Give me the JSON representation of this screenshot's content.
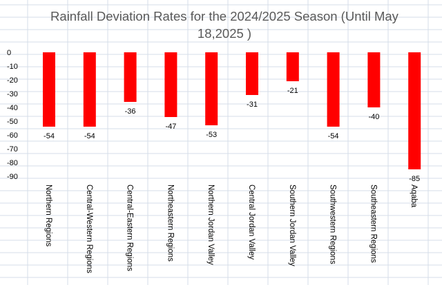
{
  "chart_data": {
    "type": "bar",
    "title_lines": [
      "Rainfall Deviation Rates for the 2024/2025 Season (Until May",
      "18,2025 )"
    ],
    "categories": [
      "Northern Regions",
      "Central-Western Regions",
      "Central-Eastern Regions",
      "Northeastern Regions",
      "Northern Jordan Valley",
      "Central Jordan Valley",
      "Southern Jordan Valley",
      "Southwestern Regions",
      "Southeastern Regions",
      "Aqaba"
    ],
    "values": [
      -54,
      -54,
      -36,
      -47,
      -53,
      -31,
      -21,
      -54,
      -40,
      -85
    ],
    "data_labels": [
      "-54",
      "-54",
      "-36",
      "-47",
      "-53",
      "-31",
      "-21",
      "-54",
      "-40",
      "-85"
    ],
    "yticks": [
      "0",
      "-10",
      "-20",
      "-30",
      "-40",
      "-50",
      "-60",
      "-70",
      "-80",
      "-90"
    ],
    "ylim": [
      -90,
      0
    ],
    "bar_color": "#ff0000",
    "grid": true,
    "legend": "none"
  }
}
